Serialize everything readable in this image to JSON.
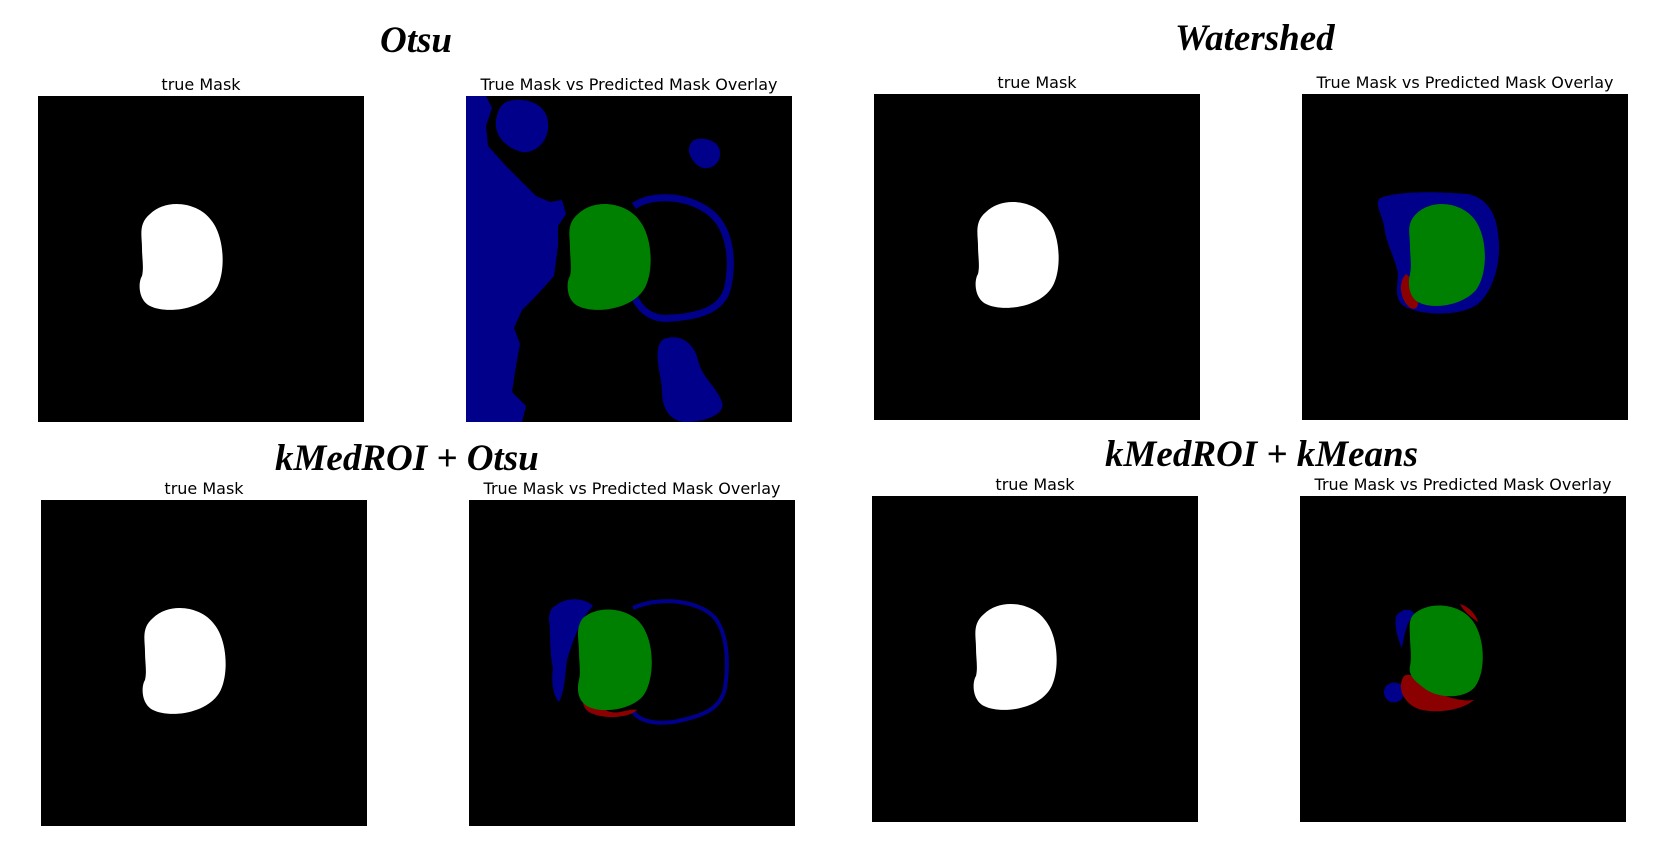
{
  "sections": [
    {
      "title": "Otsu",
      "left_caption": "true Mask",
      "right_caption": "True Mask vs Predicted Mask Overlay"
    },
    {
      "title": "Watershed",
      "left_caption": "true Mask",
      "right_caption": "True Mask vs Predicted Mask Overlay"
    },
    {
      "title": "kMedROI + Otsu",
      "left_caption": "true Mask",
      "right_caption": "True Mask vs Predicted Mask Overlay"
    },
    {
      "title": "kMedROI + kMeans",
      "left_caption": "true Mask",
      "right_caption": "True Mask vs Predicted Mask Overlay"
    }
  ],
  "colors": {
    "background": "#000000",
    "true_mask": "#ffffff",
    "overlap": "#008000",
    "false_positive": "#00008b",
    "false_negative": "#8b0000"
  }
}
